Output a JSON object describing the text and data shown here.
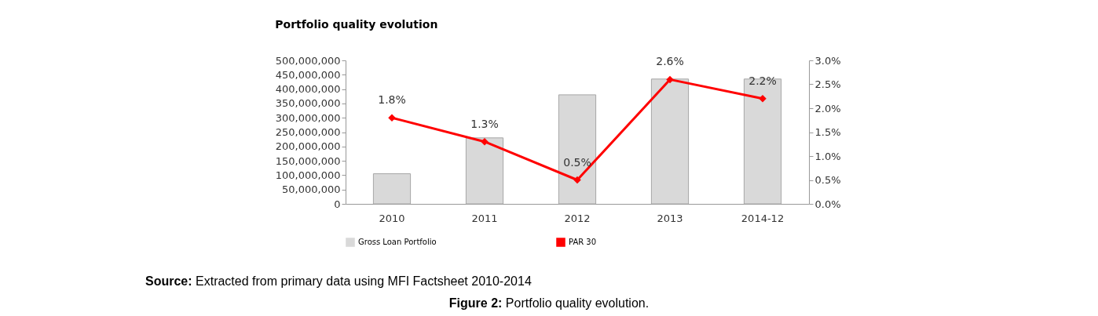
{
  "chart_data": {
    "type": "bar",
    "title": "Portfolio quality evolution",
    "categories": [
      "2010",
      "2011",
      "2012",
      "2013",
      "2014-12"
    ],
    "series": [
      {
        "name": "Gross Loan Portfolio",
        "color": "#d9d9d9",
        "values": [
          105000000,
          230000000,
          380000000,
          435000000,
          435000000
        ]
      },
      {
        "name": "PAR 30",
        "type": "line",
        "axis": "y2",
        "color": "#ff0000",
        "values": [
          1.8,
          1.3,
          0.5,
          2.6,
          2.2
        ],
        "value_labels": [
          "1.8%",
          "1.3%",
          "0.5%",
          "2.6%",
          "2.2%"
        ]
      }
    ],
    "ylim": [
      0,
      500000000
    ],
    "yticks": [
      0,
      {
        "value": 50000000,
        "label": "50,000,000"
      },
      {
        "value": 100000000,
        "label": "100,000,000"
      },
      {
        "value": 150000000,
        "label": "150,000,000"
      },
      {
        "value": 200000000,
        "label": "200,000,000"
      },
      {
        "value": 250000000,
        "label": "250,000,000"
      },
      {
        "value": 300000000,
        "label": "300,000,000"
      },
      {
        "value": 350000000,
        "label": "350,000,000"
      },
      {
        "value": 400000000,
        "label": "400,000,000"
      },
      {
        "value": 450000000,
        "label": "450,000,000"
      },
      {
        "value": 500000000,
        "label": "500,000,000"
      }
    ],
    "y2lim": [
      0,
      3
    ],
    "y2ticks": [
      {
        "value": 0,
        "label": "0.0%"
      },
      {
        "value": 0.5,
        "label": "0.5%"
      },
      {
        "value": 1,
        "label": "1.0%"
      },
      {
        "value": 1.5,
        "label": "1.5%"
      },
      {
        "value": 2,
        "label": "2.0%"
      },
      {
        "value": 2.5,
        "label": "2.5%"
      },
      {
        "value": 3,
        "label": "3.0%"
      }
    ],
    "marker": "diamond",
    "grid": false,
    "legend": "bottom",
    "annotations": [
      "Source: Extracted from primary data using MFI Factsheet 2010-2014",
      "Figure 2: Portfolio quality evolution."
    ]
  }
}
